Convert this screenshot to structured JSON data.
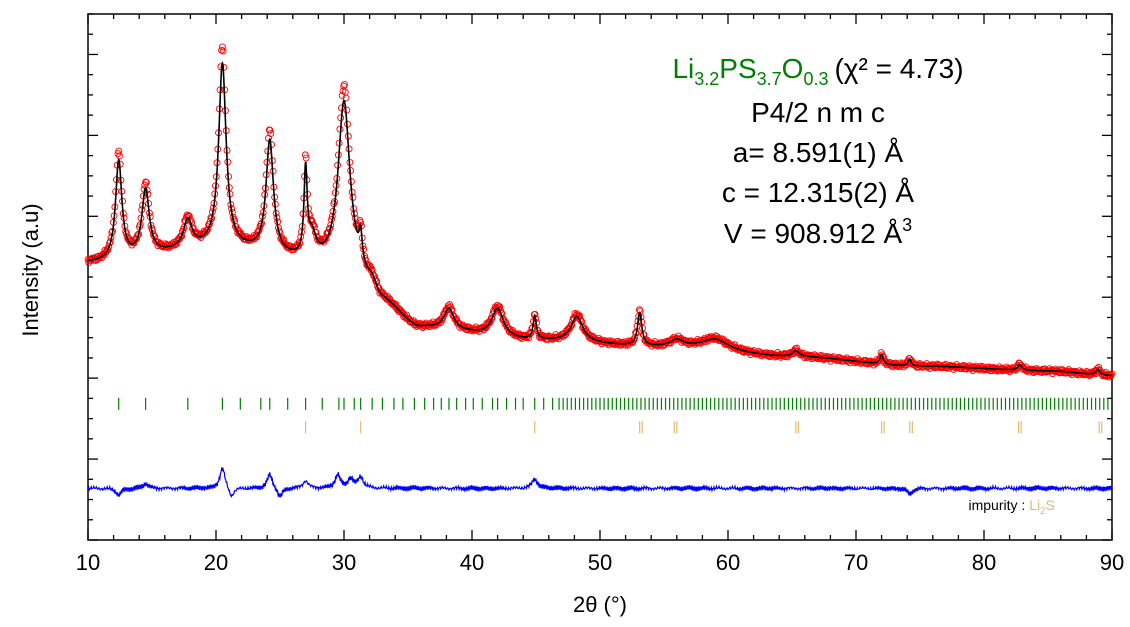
{
  "chart_data": {
    "type": "line",
    "xlabel": "2θ (°)",
    "ylabel": "Intensity (a.u)",
    "xlim": [
      10,
      90
    ],
    "ylim": [
      -1.6,
      4.0
    ],
    "x_ticks": [
      10,
      20,
      30,
      40,
      50,
      60,
      70,
      80,
      90
    ],
    "y_ticks_shown": false,
    "grid": false,
    "colors": {
      "observed": "#ff0000",
      "calculated": "#000000",
      "difference": "#0000ff",
      "main_phase_ticks": "#008000",
      "impurity_ticks": "#e5b970",
      "formula": "#008000"
    },
    "annotation": {
      "formula": {
        "base1": "Li",
        "sub1": "3.2",
        "base2": "PS",
        "sub2": "3.7",
        "base3": "O",
        "sub3": "0.3"
      },
      "chi": "(χ² = 4.73)",
      "space_group": "P4/2 n m c",
      "a": "a= 8.591(1) Å",
      "c": "c = 12.315(2) Å",
      "v": "V = 908.912 Å",
      "v_sup": "3"
    },
    "impurity_label": {
      "prefix": "impurity : ",
      "base": "Li",
      "sub": "2",
      "suffix": "S"
    },
    "peaks": [
      {
        "x": 12.4,
        "height": 1.05,
        "width": 0.3
      },
      {
        "x": 14.5,
        "height": 0.7,
        "width": 0.35
      },
      {
        "x": 17.8,
        "height": 0.3,
        "width": 0.4
      },
      {
        "x": 20.5,
        "height": 1.95,
        "width": 0.35
      },
      {
        "x": 24.2,
        "height": 1.2,
        "width": 0.35
      },
      {
        "x": 27.0,
        "height": 0.9,
        "width": 0.15
      },
      {
        "x": 27.5,
        "height": 0.25,
        "width": 0.4
      },
      {
        "x": 30.0,
        "height": 1.75,
        "width": 0.55
      },
      {
        "x": 31.3,
        "height": 0.3,
        "width": 0.15
      },
      {
        "x": 32.2,
        "height": 0.15,
        "width": 0.5
      },
      {
        "x": 38.2,
        "height": 0.22,
        "width": 0.45
      },
      {
        "x": 42.0,
        "height": 0.3,
        "width": 0.55
      },
      {
        "x": 44.9,
        "height": 0.25,
        "width": 0.15
      },
      {
        "x": 48.2,
        "height": 0.27,
        "width": 0.55
      },
      {
        "x": 53.1,
        "height": 0.35,
        "width": 0.2
      },
      {
        "x": 56.0,
        "height": 0.07,
        "width": 0.6
      },
      {
        "x": 59.0,
        "height": 0.12,
        "width": 1.3
      },
      {
        "x": 65.3,
        "height": 0.06,
        "width": 0.3
      },
      {
        "x": 72.0,
        "height": 0.1,
        "width": 0.15
      },
      {
        "x": 74.2,
        "height": 0.07,
        "width": 0.15
      },
      {
        "x": 82.8,
        "height": 0.06,
        "width": 0.2
      },
      {
        "x": 88.9,
        "height": 0.06,
        "width": 0.2
      }
    ],
    "background": {
      "points": [
        [
          10,
          1.35
        ],
        [
          20,
          1.5
        ],
        [
          30,
          1.3
        ],
        [
          33,
          0.9
        ],
        [
          36,
          0.65
        ],
        [
          45,
          0.52
        ],
        [
          55,
          0.45
        ],
        [
          65,
          0.35
        ],
        [
          75,
          0.25
        ],
        [
          85,
          0.2
        ],
        [
          90,
          0.15
        ]
      ]
    },
    "main_phase_ticks": {
      "y": -0.15,
      "positions": [
        12.4,
        14.5,
        17.8,
        20.5,
        21.9,
        23.5,
        24.2,
        25.6,
        27.0,
        28.3,
        29.6,
        30.0,
        30.8,
        31.3,
        32.2,
        33.0,
        33.9,
        34.6,
        35.5,
        36.3,
        37.0,
        37.6,
        38.2,
        38.8,
        39.5,
        40.1,
        40.8,
        41.6,
        42.0,
        42.7,
        43.4,
        44.0,
        44.9,
        45.6,
        46.3
      ],
      "dense_range": [
        46.8,
        89.8
      ],
      "dense_step": 0.32
    },
    "impurity_ticks": {
      "y": -0.4,
      "positions": [
        27.0,
        31.3,
        44.9,
        53.1,
        53.3,
        55.8,
        56.0,
        65.3,
        65.5,
        72.0,
        72.2,
        74.2,
        74.4,
        82.7,
        82.9,
        89.0,
        89.2
      ]
    },
    "difference_curve": {
      "baseline": -1.05,
      "features": [
        {
          "x": 12.4,
          "amp": -0.07
        },
        {
          "x": 14.5,
          "amp": 0.05
        },
        {
          "x": 20.5,
          "amp": 0.22
        },
        {
          "x": 21.2,
          "amp": -0.1
        },
        {
          "x": 24.2,
          "amp": 0.15
        },
        {
          "x": 25.0,
          "amp": -0.1
        },
        {
          "x": 27.0,
          "amp": 0.08
        },
        {
          "x": 29.5,
          "amp": 0.14
        },
        {
          "x": 30.5,
          "amp": 0.1
        },
        {
          "x": 31.3,
          "amp": 0.12
        },
        {
          "x": 44.9,
          "amp": 0.1
        },
        {
          "x": 74.2,
          "amp": -0.06
        }
      ]
    }
  }
}
